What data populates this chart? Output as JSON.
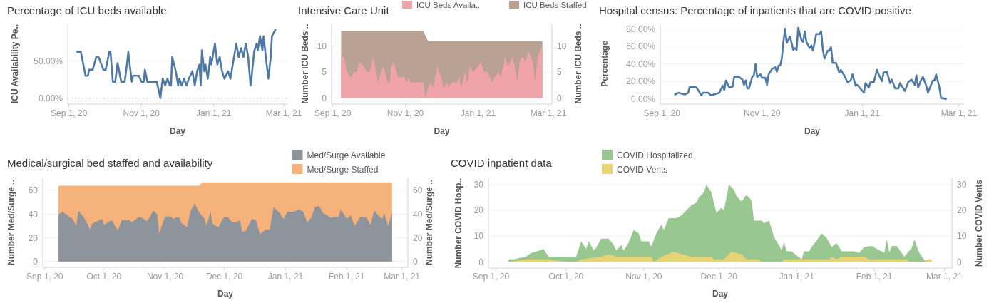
{
  "chart_data": [
    {
      "type": "line",
      "title": "Percentage of ICU beds available",
      "xlabel": "Day",
      "ylabel": "ICU Availability Pe..",
      "xlim": [
        "2020-08-31",
        "2021-03-04"
      ],
      "xticks": [
        {
          "value": "2020-09-01",
          "label": "Sep 1, 20"
        },
        {
          "value": "2020-11-01",
          "label": "Nov 1, 20"
        },
        {
          "value": "2021-01-01",
          "label": "Jan 1, 21"
        },
        {
          "value": "2021-03-01",
          "label": "Mar 1, 21"
        }
      ],
      "ylim": [
        -8,
        100
      ],
      "yticks": [
        {
          "value": 0,
          "label": "0.00%"
        },
        {
          "value": 50,
          "label": "50.00%"
        }
      ],
      "grid": "y",
      "ref_lines": [
        {
          "axis": "y",
          "value": 0,
          "line_style": "dotted",
          "color": "#bbbbbb"
        }
      ],
      "series": [
        {
          "color": "#4e79a7",
          "x": [
            "2020-09-08",
            "2020-09-11",
            "2020-09-15",
            "2020-09-17",
            "2020-09-18",
            "2020-09-21",
            "2020-09-24",
            "2020-09-26",
            "2020-09-30",
            "2020-10-02",
            "2020-10-05",
            "2020-10-06",
            "2020-10-08",
            "2020-10-10",
            "2020-10-12",
            "2020-10-15",
            "2020-10-18",
            "2020-10-20",
            "2020-10-21",
            "2020-10-22",
            "2020-10-24",
            "2020-10-25",
            "2020-10-30",
            "2020-11-01",
            "2020-11-03",
            "2020-11-04",
            "2020-11-06",
            "2020-11-14",
            "2020-11-17",
            "2020-11-19",
            "2020-11-21",
            "2020-11-23",
            "2020-11-25",
            "2020-11-26",
            "2020-11-27",
            "2020-11-30",
            "2020-12-02",
            "2020-12-03",
            "2020-12-05",
            "2020-12-07",
            "2020-12-09",
            "2020-12-11",
            "2020-12-14",
            "2020-12-16",
            "2020-12-18",
            "2020-12-20",
            "2020-12-21",
            "2020-12-22",
            "2020-12-24",
            "2020-12-25",
            "2020-12-27",
            "2020-12-29",
            "2020-12-30",
            "2021-01-02",
            "2021-01-04",
            "2021-01-06",
            "2021-01-08",
            "2021-01-10",
            "2021-01-13",
            "2021-01-15",
            "2021-01-17",
            "2021-01-20",
            "2021-01-22",
            "2021-01-24",
            "2021-01-26",
            "2021-01-28",
            "2021-01-30",
            "2021-02-01",
            "2021-02-02",
            "2021-02-04",
            "2021-02-06",
            "2021-02-07",
            "2021-02-09",
            "2021-02-11",
            "2021-02-12",
            "2021-02-14",
            "2021-02-16",
            "2021-02-18",
            "2021-02-19",
            "2021-02-22"
          ],
          "values": [
            62,
            62,
            30,
            30,
            38,
            38,
            55,
            55,
            38,
            38,
            62,
            62,
            22,
            22,
            47,
            22,
            22,
            47,
            62,
            47,
            22,
            30,
            30,
            22,
            22,
            38,
            22,
            22,
            0,
            26,
            17,
            26,
            17,
            17,
            55,
            36,
            17,
            26,
            17,
            26,
            17,
            26,
            36,
            17,
            36,
            45,
            17,
            64,
            36,
            45,
            26,
            55,
            45,
            73,
            45,
            55,
            36,
            26,
            36,
            26,
            45,
            73,
            55,
            67,
            55,
            73,
            55,
            17,
            30,
            62,
            73,
            64,
            83,
            64,
            83,
            53,
            26,
            55,
            83,
            92
          ]
        }
      ]
    },
    {
      "type": "area",
      "title": "Intensive Care Unit",
      "xlabel": "Day",
      "ylabel": "Number ICU Beds ..",
      "y2label": "Number ICU Beds ..",
      "xlim": [
        "2020-08-31",
        "2021-03-04"
      ],
      "xticks": [
        {
          "value": "2020-09-01",
          "label": "Sep 1, 20"
        },
        {
          "value": "2020-11-01",
          "label": "Nov 1, 20"
        },
        {
          "value": "2021-01-01",
          "label": "Jan 1, 21"
        },
        {
          "value": "2021-03-01",
          "label": "Mar 1, 21"
        }
      ],
      "ylim": [
        -1.2,
        14.4
      ],
      "yticks": [
        0,
        5,
        10
      ],
      "y2lim": [
        -1.2,
        14.4
      ],
      "y2ticks": [
        0,
        5,
        10
      ],
      "grid": "y",
      "legend": "top right",
      "series": [
        {
          "name": "ICU Beds Availa..",
          "color": "#f0a3a8",
          "axis": "y2",
          "x": [
            "2020-09-08",
            "2020-09-10",
            "2020-09-13",
            "2020-09-16",
            "2020-09-19",
            "2020-09-21",
            "2020-09-24",
            "2020-09-27",
            "2020-09-30",
            "2020-10-02",
            "2020-10-05",
            "2020-10-09",
            "2020-10-13",
            "2020-10-15",
            "2020-10-17",
            "2020-10-19",
            "2020-10-20",
            "2020-10-22",
            "2020-10-26",
            "2020-10-31",
            "2020-11-02",
            "2020-11-04",
            "2020-11-05",
            "2020-11-16",
            "2020-11-18",
            "2020-11-20",
            "2020-11-22",
            "2020-11-24",
            "2020-11-28",
            "2020-12-01",
            "2020-12-03",
            "2020-12-06",
            "2020-12-07",
            "2020-12-10",
            "2020-12-14",
            "2020-12-16",
            "2020-12-18",
            "2020-12-21",
            "2020-12-23",
            "2020-12-25",
            "2020-12-28",
            "2021-01-01",
            "2021-01-03",
            "2021-01-06",
            "2021-01-09",
            "2021-01-13",
            "2021-01-15",
            "2021-01-18",
            "2021-01-20",
            "2021-01-22",
            "2021-01-24",
            "2021-01-26",
            "2021-01-28",
            "2021-01-30",
            "2021-02-01",
            "2021-02-03",
            "2021-02-05",
            "2021-02-07",
            "2021-02-10",
            "2021-02-12",
            "2021-02-14",
            "2021-02-16",
            "2021-02-18",
            "2021-02-20",
            "2021-02-22",
            "2021-02-24"
          ],
          "values": [
            8,
            8,
            5,
            4,
            5,
            5,
            7,
            6,
            5,
            5,
            8,
            3,
            6,
            5,
            3,
            3,
            6,
            7,
            4,
            4,
            3,
            4,
            3,
            3,
            0,
            2,
            3,
            2,
            6,
            4,
            2,
            3,
            2,
            3,
            3,
            4,
            2,
            5,
            3,
            6,
            5,
            6,
            7,
            5,
            5,
            3,
            4,
            5,
            4,
            6,
            8,
            6,
            7,
            8,
            6,
            3,
            7,
            8,
            7,
            9,
            8,
            7,
            3,
            8,
            9,
            10
          ]
        },
        {
          "name": "ICU Beds Staffed",
          "color": "#b9a193",
          "x": [
            "2020-09-08",
            "2020-11-16",
            "2020-11-18",
            "2020-11-20",
            "2021-02-24"
          ],
          "values": [
            13,
            13,
            12,
            11,
            11
          ]
        }
      ]
    },
    {
      "type": "line",
      "title": "Hospital census: Percentage of inpatients that are COVID positive",
      "xlabel": "Day",
      "ylabel": "Percentage",
      "xlim": [
        "2020-08-31",
        "2021-03-04"
      ],
      "xticks": [
        {
          "value": "2020-09-01",
          "label": "Sep 1, 20"
        },
        {
          "value": "2020-11-01",
          "label": "Nov 1, 20"
        },
        {
          "value": "2021-01-01",
          "label": "Jan 1, 21"
        },
        {
          "value": "2021-03-01",
          "label": "Mar 1, 21"
        }
      ],
      "ylim": [
        -6,
        86
      ],
      "yticks": [
        {
          "value": 0,
          "label": "0.00%"
        },
        {
          "value": 20,
          "label": "20.00%"
        },
        {
          "value": 40,
          "label": "40.00%"
        },
        {
          "value": 60,
          "label": "60.00%"
        },
        {
          "value": 80,
          "label": "80.00%"
        }
      ],
      "grid": "y",
      "series": [
        {
          "color": "#4e79a7",
          "x": [
            "2020-09-09",
            "2020-09-11",
            "2020-09-15",
            "2020-09-17",
            "2020-09-18",
            "2020-09-22",
            "2020-09-25",
            "2020-09-26",
            "2020-09-29",
            "2020-10-01",
            "2020-10-06",
            "2020-10-08",
            "2020-10-09",
            "2020-10-10",
            "2020-10-12",
            "2020-10-14",
            "2020-10-15",
            "2020-10-18",
            "2020-10-20",
            "2020-10-21",
            "2020-10-22",
            "2020-10-23",
            "2020-10-24",
            "2020-10-26",
            "2020-10-27",
            "2020-10-28",
            "2020-10-29",
            "2020-10-31",
            "2020-11-01",
            "2020-11-03",
            "2020-11-04",
            "2020-11-05",
            "2020-11-07",
            "2020-11-09",
            "2020-11-10",
            "2020-11-11",
            "2020-11-12",
            "2020-11-13",
            "2020-11-14",
            "2020-11-15",
            "2020-11-16",
            "2020-11-18",
            "2020-11-20",
            "2020-11-21",
            "2020-11-22",
            "2020-11-23",
            "2020-11-25",
            "2020-11-26",
            "2020-11-27",
            "2020-11-28",
            "2020-11-30",
            "2020-12-01",
            "2020-12-02",
            "2020-12-04",
            "2020-12-06",
            "2020-12-07",
            "2020-12-08",
            "2020-12-09",
            "2020-12-11",
            "2020-12-12",
            "2020-12-13",
            "2020-12-14",
            "2020-12-16",
            "2020-12-18",
            "2020-12-19",
            "2020-12-21",
            "2020-12-23",
            "2020-12-25",
            "2020-12-26",
            "2020-12-28",
            "2020-12-29",
            "2021-01-02",
            "2021-01-03",
            "2021-01-05",
            "2021-01-06",
            "2021-01-08",
            "2021-01-10",
            "2021-01-11",
            "2021-01-13",
            "2021-01-14",
            "2021-01-16",
            "2021-01-18",
            "2021-01-19",
            "2021-01-21",
            "2021-01-23",
            "2021-01-24",
            "2021-01-27",
            "2021-01-29",
            "2021-01-31",
            "2021-02-02",
            "2021-02-03",
            "2021-02-04",
            "2021-02-06",
            "2021-02-07",
            "2021-02-09",
            "2021-02-10",
            "2021-02-13",
            "2021-02-14",
            "2021-02-15",
            "2021-02-17",
            "2021-02-18",
            "2021-02-21"
          ],
          "values": [
            5,
            7,
            5,
            7,
            14,
            13,
            4,
            7,
            7,
            4,
            7,
            15,
            10,
            21,
            13,
            14,
            25,
            25,
            22,
            16,
            21,
            12,
            12,
            25,
            27,
            40,
            25,
            28,
            24,
            24,
            16,
            28,
            34,
            36,
            31,
            38,
            38,
            46,
            65,
            80,
            64,
            71,
            56,
            58,
            56,
            81,
            67,
            65,
            77,
            65,
            58,
            61,
            55,
            74,
            74,
            77,
            56,
            46,
            55,
            55,
            59,
            41,
            41,
            30,
            33,
            27,
            19,
            21,
            28,
            15,
            16,
            7,
            18,
            13,
            19,
            19,
            33,
            28,
            20,
            30,
            31,
            18,
            22,
            12,
            12,
            18,
            9,
            19,
            22,
            16,
            27,
            13,
            22,
            25,
            15,
            7,
            21,
            21,
            28,
            13,
            1,
            0
          ]
        }
      ]
    },
    {
      "type": "area",
      "title": "Medical/surgical bed staffed and availability",
      "xlabel": "Day",
      "ylabel": "Number Med/Surge ..",
      "y2label": "Number Med/Surge ..",
      "xlim": [
        "2020-08-31",
        "2021-03-04"
      ],
      "xticks": [
        {
          "value": "2020-09-01",
          "label": "Sep 1, 20"
        },
        {
          "value": "2020-10-01",
          "label": "Oct 1, 20"
        },
        {
          "value": "2020-11-01",
          "label": "Nov 1, 20"
        },
        {
          "value": "2020-12-01",
          "label": "Dec 1, 20"
        },
        {
          "value": "2021-01-01",
          "label": "Jan 1, 21"
        },
        {
          "value": "2021-02-01",
          "label": "Feb 1, 21"
        },
        {
          "value": "2021-03-01",
          "label": "Mar 1, 21"
        }
      ],
      "ylim": [
        -5,
        71
      ],
      "yticks": [
        0,
        20,
        40,
        60
      ],
      "y2lim": [
        -5,
        71
      ],
      "y2ticks": [
        0,
        20,
        40,
        60
      ],
      "grid": "y",
      "legend": "top",
      "series": [
        {
          "name": "Med/Surge Available",
          "color": "#8e949b",
          "axis": "y2",
          "x": [
            "2020-09-08",
            "2020-09-10",
            "2020-09-15",
            "2020-09-17",
            "2020-09-18",
            "2020-09-21",
            "2020-09-24",
            "2020-09-25",
            "2020-09-30",
            "2020-10-01",
            "2020-10-05",
            "2020-10-08",
            "2020-10-10",
            "2020-10-14",
            "2020-10-15",
            "2020-10-19",
            "2020-10-21",
            "2020-10-23",
            "2020-10-26",
            "2020-10-28",
            "2020-10-29",
            "2020-11-01",
            "2020-11-04",
            "2020-11-05",
            "2020-11-08",
            "2020-11-09",
            "2020-11-12",
            "2020-11-14",
            "2020-11-16",
            "2020-11-18",
            "2020-11-21",
            "2020-11-22",
            "2020-11-24",
            "2020-11-25",
            "2020-11-28",
            "2020-12-01",
            "2020-12-03",
            "2020-12-05",
            "2020-12-07",
            "2020-12-09",
            "2020-12-10",
            "2020-12-12",
            "2020-12-15",
            "2020-12-17",
            "2020-12-19",
            "2020-12-22",
            "2020-12-24",
            "2020-12-26",
            "2020-12-29",
            "2020-12-31",
            "2021-01-02",
            "2021-01-05",
            "2021-01-08",
            "2021-01-10",
            "2021-01-12",
            "2021-01-14",
            "2021-01-16",
            "2021-01-18",
            "2021-01-20",
            "2021-01-24",
            "2021-01-26",
            "2021-01-28",
            "2021-01-29",
            "2021-02-01",
            "2021-02-03",
            "2021-02-05",
            "2021-02-08",
            "2021-02-11",
            "2021-02-13",
            "2021-02-15",
            "2021-02-17",
            "2021-02-19",
            "2021-02-20",
            "2021-02-22",
            "2021-02-24"
          ],
          "values": [
            40,
            42,
            36,
            30,
            43,
            37,
            27,
            32,
            36,
            31,
            35,
            26,
            35,
            35,
            33,
            38,
            36,
            34,
            43,
            40,
            24,
            38,
            38,
            36,
            38,
            33,
            29,
            43,
            49,
            42,
            36,
            30,
            42,
            32,
            29,
            38,
            37,
            33,
            33,
            35,
            25,
            26,
            36,
            35,
            23,
            27,
            27,
            46,
            41,
            36,
            42,
            42,
            44,
            42,
            33,
            37,
            46,
            47,
            41,
            37,
            38,
            38,
            44,
            36,
            39,
            30,
            38,
            37,
            31,
            43,
            39,
            36,
            41,
            30,
            41
          ]
        },
        {
          "name": "Med/Surge Staffed",
          "color": "#f5b27b",
          "x": [
            "2020-09-08",
            "2020-11-18",
            "2020-11-20",
            "2021-02-24"
          ],
          "values": [
            64,
            64,
            67,
            67
          ]
        }
      ]
    },
    {
      "type": "area",
      "title": "COVID inpatient data",
      "xlabel": "Day",
      "ylabel": "Number COVID Hosp..",
      "y2label": "Number COVID Vents",
      "xlim": [
        "2020-08-31",
        "2021-03-04"
      ],
      "xticks": [
        {
          "value": "2020-09-01",
          "label": "Sep 1, 20"
        },
        {
          "value": "2020-10-01",
          "label": "Oct 1, 20"
        },
        {
          "value": "2020-11-01",
          "label": "Nov 1, 20"
        },
        {
          "value": "2020-12-01",
          "label": "Dec 1, 20"
        },
        {
          "value": "2021-01-01",
          "label": "Jan 1, 21"
        },
        {
          "value": "2021-02-01",
          "label": "Feb 1, 21"
        },
        {
          "value": "2021-03-01",
          "label": "Mar 1, 21"
        }
      ],
      "ylim": [
        -2.4,
        32.5
      ],
      "yticks": [
        0,
        10,
        20,
        30
      ],
      "y2lim": [
        -2.4,
        32.5
      ],
      "y2ticks": [
        0,
        10,
        20,
        30
      ],
      "grid": "y",
      "legend": "top",
      "series": [
        {
          "name": "COVID Hospitalized",
          "color": "#98c890",
          "x": [
            "2020-09-08",
            "2020-09-10",
            "2020-09-15",
            "2020-09-17",
            "2020-09-19",
            "2020-09-22",
            "2020-09-24",
            "2020-10-05",
            "2020-10-07",
            "2020-10-09",
            "2020-10-10",
            "2020-10-12",
            "2020-10-13",
            "2020-10-15",
            "2020-10-18",
            "2020-10-20",
            "2020-10-21",
            "2020-10-23",
            "2020-10-24",
            "2020-10-26",
            "2020-10-28",
            "2020-10-30",
            "2020-10-31",
            "2020-11-03",
            "2020-11-04",
            "2020-11-06",
            "2020-11-08",
            "2020-11-09",
            "2020-11-11",
            "2020-11-14",
            "2020-11-16",
            "2020-11-18",
            "2020-11-20",
            "2020-11-22",
            "2020-11-23",
            "2020-11-25",
            "2020-11-26",
            "2020-11-28",
            "2020-11-30",
            "2020-12-02",
            "2020-12-03",
            "2020-12-05",
            "2020-12-07",
            "2020-12-08",
            "2020-12-10",
            "2020-12-12",
            "2020-12-14",
            "2020-12-15",
            "2020-12-18",
            "2020-12-19",
            "2020-12-21",
            "2020-12-23",
            "2020-12-26",
            "2020-12-27",
            "2020-12-28",
            "2020-12-30",
            "2021-01-03",
            "2021-01-04",
            "2021-01-06",
            "2021-01-07",
            "2021-01-09",
            "2021-01-11",
            "2021-01-13",
            "2021-01-15",
            "2021-01-17",
            "2021-01-19",
            "2021-01-22",
            "2021-01-24",
            "2021-01-26",
            "2021-01-28",
            "2021-01-31",
            "2021-02-05",
            "2021-02-06",
            "2021-02-07",
            "2021-02-08",
            "2021-02-10",
            "2021-02-13",
            "2021-02-16",
            "2021-02-17",
            "2021-02-19",
            "2021-02-21",
            "2021-02-23"
          ],
          "values": [
            1,
            1,
            2,
            3.5,
            4,
            5,
            2,
            2,
            8,
            5,
            8,
            4.6,
            5.5,
            9,
            9,
            6.5,
            4.4,
            6.5,
            4.4,
            7.6,
            12.4,
            11,
            8,
            8,
            6,
            11,
            14.5,
            12.4,
            17,
            17,
            18,
            20,
            22,
            23,
            25,
            27,
            30,
            27,
            19,
            21,
            20,
            30,
            28,
            25.6,
            23.5,
            26,
            24,
            16,
            16,
            15,
            16,
            9.7,
            4.6,
            7.6,
            4.1,
            4.1,
            1,
            4.1,
            4.1,
            5.8,
            8.3,
            11,
            9.3,
            5.8,
            7.3,
            4.1,
            4.1,
            4.1,
            3.5,
            5.8,
            6.2,
            3.5,
            8.7,
            3.7,
            6.2,
            6.2,
            2,
            5.5,
            8.7,
            3.5,
            0.7,
            0
          ]
        },
        {
          "name": "COVID Vents",
          "color": "#e8d476",
          "axis": "y2",
          "x": [
            "2020-09-08",
            "2020-09-15",
            "2020-09-24",
            "2020-10-01",
            "2020-10-05",
            "2020-10-07",
            "2020-10-15",
            "2020-10-18",
            "2020-10-21",
            "2020-11-04",
            "2020-11-05",
            "2020-11-08",
            "2020-11-13",
            "2020-11-16",
            "2020-11-20",
            "2020-11-28",
            "2020-11-29",
            "2020-12-03",
            "2020-12-04",
            "2020-12-06",
            "2020-12-10",
            "2020-12-12",
            "2020-12-17",
            "2020-12-18",
            "2020-12-26",
            "2020-12-27",
            "2021-01-14",
            "2021-01-15",
            "2021-01-17",
            "2021-01-19",
            "2021-01-28",
            "2021-01-30",
            "2021-02-14",
            "2021-02-15",
            "2021-02-21",
            "2021-02-22",
            "2021-02-24"
          ],
          "values": [
            0,
            1,
            1,
            0,
            0,
            1,
            2,
            3,
            2,
            2,
            0,
            2,
            4,
            3,
            2,
            2,
            1,
            1,
            2,
            4,
            3,
            1,
            1,
            0,
            0,
            1,
            1,
            2,
            1,
            2,
            2,
            1,
            1,
            0,
            0,
            1,
            1
          ]
        }
      ]
    }
  ]
}
